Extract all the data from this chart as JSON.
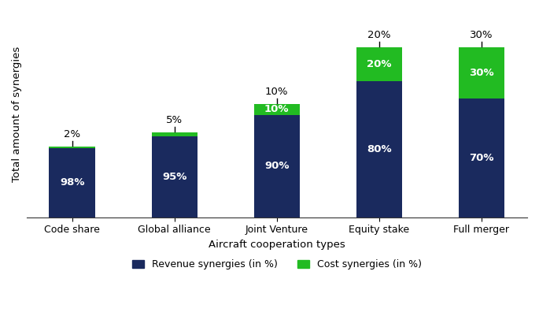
{
  "categories": [
    "Code share",
    "Global alliance",
    "Joint Venture",
    "Equity stake",
    "Full merger"
  ],
  "revenue_values": [
    49,
    57,
    72,
    96,
    84
  ],
  "cost_values": [
    1,
    3,
    8,
    24,
    36
  ],
  "revenue_color": "#1a2a5e",
  "cost_color": "#22bb22",
  "revenue_label": "Revenue synergies (in %)",
  "cost_label": "Cost synergies (in %)",
  "revenue_pct": [
    "98%",
    "95%",
    "90%",
    "80%",
    "70%"
  ],
  "cost_pct": [
    "2%",
    "5%",
    "10%",
    "20%",
    "30%"
  ],
  "xlabel": "Aircraft cooperation types",
  "ylabel": "Total amount of synergies",
  "bar_width": 0.45,
  "revenue_text_color": "white",
  "cost_text_color": "white",
  "above_bar_text_color": "black",
  "ylim": [
    0,
    145
  ],
  "revenue_fontsize": 9.5,
  "cost_fontsize": 9.5,
  "above_fontsize": 9.5,
  "tick_fontsize": 9,
  "label_fontsize": 9.5,
  "legend_fontsize": 9
}
